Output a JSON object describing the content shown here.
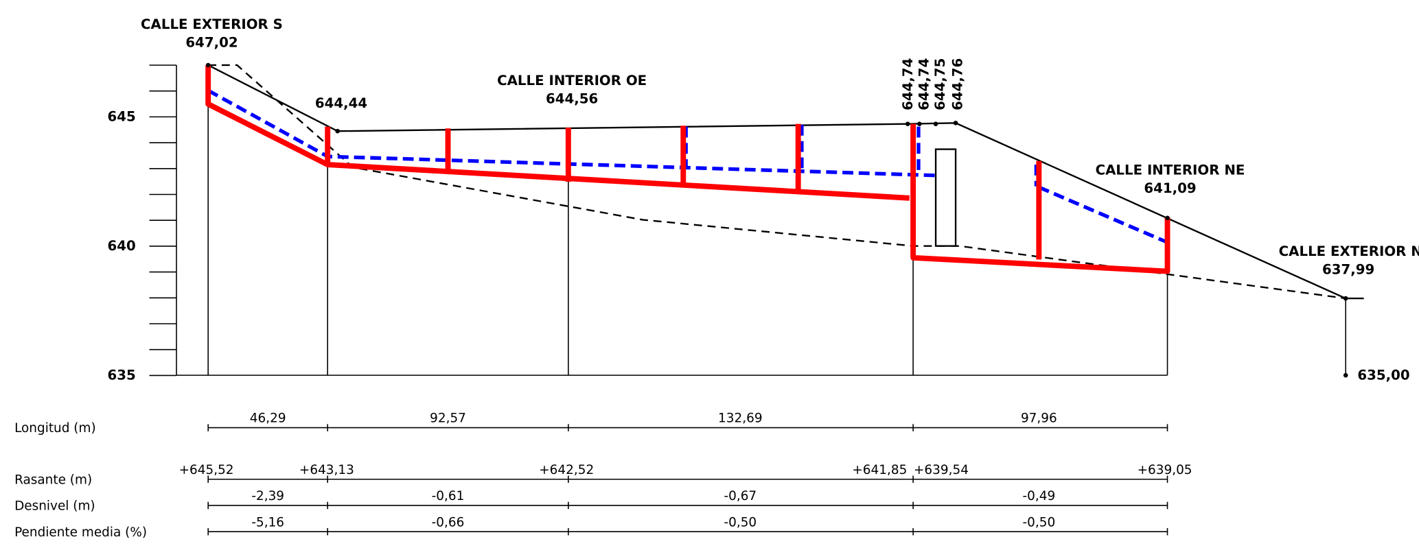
{
  "points": [
    {
      "name": "CALLE EXTERIOR S",
      "elevation": "647,02"
    },
    {
      "elevation": "644,44"
    },
    {
      "name": "CALLE INTERIOR OE",
      "elevation": "644,56"
    },
    {
      "elevation": "644,74"
    },
    {
      "elevation": "644,74"
    },
    {
      "elevation": "644,75"
    },
    {
      "elevation": "644,76"
    },
    {
      "name": "CALLE INTERIOR NE",
      "elevation": "641,09"
    },
    {
      "name": "CALLE EXTERIOR N",
      "elevation": "637,99"
    }
  ],
  "datum": "635,00",
  "axis_ticks": [
    "645",
    "640",
    "635"
  ],
  "table": {
    "rows": [
      {
        "label": "Longitud (m)",
        "values": [
          "46,29",
          "92,57",
          "132,69",
          "97,96"
        ]
      },
      {
        "label": "Rasante (m)",
        "values": [
          "+645,52",
          "+643,13",
          "+642,52",
          "+641,85",
          "+639,54",
          "+639,05"
        ]
      },
      {
        "label": "Desnivel (m)",
        "values": [
          "-2,39",
          "-0,61",
          "-0,67",
          "-0,49"
        ]
      },
      {
        "label": "Pendiente media (%)",
        "values": [
          "-5,16",
          "-0,66",
          "-0,50",
          "-0,50"
        ]
      }
    ]
  }
}
